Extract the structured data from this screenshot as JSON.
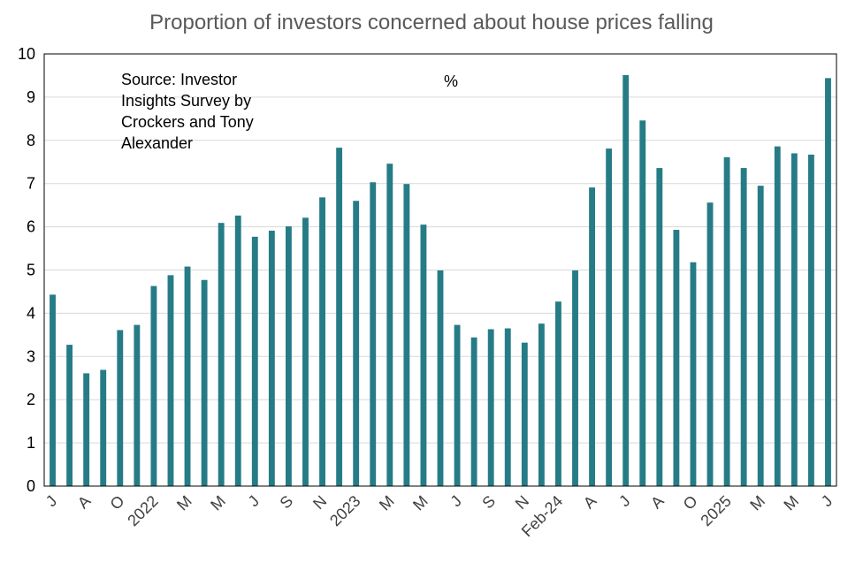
{
  "chart_data": {
    "type": "bar",
    "title": "Proportion of investors concerned about house prices falling",
    "unit_label": "%",
    "annotation": [
      "Source: Investor",
      "Insights Survey by",
      "Crockers and Tony",
      "Alexander"
    ],
    "ylim": [
      0,
      10
    ],
    "yticks": [
      0,
      1,
      2,
      3,
      4,
      5,
      6,
      7,
      8,
      9,
      10
    ],
    "grid": true,
    "bar_color": "#267C86",
    "values": [
      4.43,
      3.27,
      2.61,
      2.69,
      3.61,
      3.73,
      4.63,
      4.88,
      5.08,
      4.77,
      6.09,
      6.26,
      5.77,
      5.91,
      6.01,
      6.21,
      6.68,
      7.83,
      6.6,
      7.03,
      7.46,
      6.99,
      6.05,
      4.99,
      3.73,
      3.44,
      3.63,
      3.65,
      3.32,
      3.76,
      4.27,
      4.99,
      6.91,
      7.81,
      9.51,
      8.46,
      7.36,
      5.93,
      5.18,
      6.56,
      7.61,
      7.36,
      6.95,
      7.86,
      7.7,
      7.67,
      9.44
    ],
    "x_tick_labels": [
      {
        "index": 0,
        "label": "J"
      },
      {
        "index": 2,
        "label": "A"
      },
      {
        "index": 4,
        "label": "O"
      },
      {
        "index": 6,
        "label": "2022"
      },
      {
        "index": 8,
        "label": "M"
      },
      {
        "index": 10,
        "label": "M"
      },
      {
        "index": 12,
        "label": "J"
      },
      {
        "index": 14,
        "label": "S"
      },
      {
        "index": 16,
        "label": "N"
      },
      {
        "index": 18,
        "label": "2023"
      },
      {
        "index": 20,
        "label": "M"
      },
      {
        "index": 22,
        "label": "M"
      },
      {
        "index": 24,
        "label": "J"
      },
      {
        "index": 26,
        "label": "S"
      },
      {
        "index": 28,
        "label": "N"
      },
      {
        "index": 30,
        "label": "Feb-24"
      },
      {
        "index": 32,
        "label": "A"
      },
      {
        "index": 34,
        "label": "J"
      },
      {
        "index": 36,
        "label": "A"
      },
      {
        "index": 38,
        "label": "O"
      },
      {
        "index": 40,
        "label": "2025"
      },
      {
        "index": 42,
        "label": "M"
      },
      {
        "index": 44,
        "label": "M"
      },
      {
        "index": 46,
        "label": "J"
      }
    ]
  }
}
